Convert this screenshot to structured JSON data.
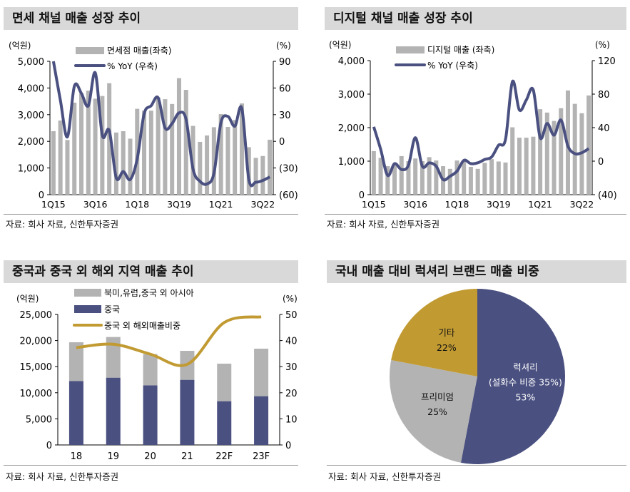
{
  "source_note": "자료: 회사 자료, 신한투자증권",
  "colors": {
    "bar_gray": "#b3b3b3",
    "navy": "#4a5080",
    "gold": "#c19a32",
    "header_bg": "#d9d9d9"
  },
  "chart_data": [
    {
      "type": "bar+line",
      "title": "면세 채널 매출 성장 추이",
      "ylabel": "(억원)",
      "y2label": "(%)",
      "ylim": [
        0,
        5000
      ],
      "y2lim": [
        -60,
        90
      ],
      "yticks": [
        "0",
        "1,000",
        "2,000",
        "3,000",
        "4,000",
        "5,000"
      ],
      "y2ticks": [
        "(60)",
        "(30)",
        "0",
        "30",
        "60",
        "90"
      ],
      "categories": [
        "1Q15",
        "2Q15",
        "3Q15",
        "4Q15",
        "1Q16",
        "2Q16",
        "3Q16",
        "4Q16",
        "1Q17",
        "2Q17",
        "3Q17",
        "4Q17",
        "1Q18",
        "2Q18",
        "3Q18",
        "4Q18",
        "1Q19",
        "2Q19",
        "3Q19",
        "4Q19",
        "1Q20",
        "2Q20",
        "3Q20",
        "4Q20",
        "1Q21",
        "2Q21",
        "3Q21",
        "4Q21",
        "1Q22",
        "2Q22",
        "3Q22",
        "4Q22"
      ],
      "xticks": [
        "1Q15",
        "3Q16",
        "1Q18",
        "3Q19",
        "1Q21",
        "3Q22"
      ],
      "series": [
        {
          "name": "면세점 매출(좌축)",
          "type": "bar",
          "axis": "left",
          "values": [
            2380,
            2780,
            2050,
            3450,
            3800,
            3900,
            3600,
            3700,
            4180,
            2330,
            2380,
            2100,
            3220,
            3150,
            3150,
            3650,
            3580,
            3400,
            4370,
            3930,
            2580,
            1980,
            2220,
            2530,
            3020,
            2540,
            2800,
            3420,
            1780,
            1380,
            1450,
            2060
          ]
        },
        {
          "name": "% YoY (우축)",
          "type": "line",
          "axis": "right",
          "values": [
            90,
            46,
            5,
            62,
            54,
            40,
            77,
            7,
            12,
            -41,
            -34,
            -43,
            -20,
            31,
            40,
            49,
            15,
            20,
            32,
            25,
            -31,
            -45,
            -48,
            -36,
            21,
            28,
            17,
            37,
            -43,
            -46,
            -44,
            -40
          ]
        }
      ]
    },
    {
      "type": "bar+line",
      "title": "디지털 채널 매출 성장 추이",
      "ylabel": "(억원)",
      "y2label": "(%)",
      "ylim": [
        0,
        4000
      ],
      "y2lim": [
        -40,
        120
      ],
      "yticks": [
        "0",
        "1,000",
        "2,000",
        "3,000",
        "4,000"
      ],
      "y2ticks": [
        "(40)",
        "0",
        "40",
        "80",
        "120"
      ],
      "categories": [
        "1Q15",
        "2Q15",
        "3Q15",
        "4Q15",
        "1Q16",
        "2Q16",
        "3Q16",
        "4Q16",
        "1Q17",
        "2Q17",
        "3Q17",
        "4Q17",
        "1Q18",
        "2Q18",
        "3Q18",
        "4Q18",
        "1Q19",
        "2Q19",
        "3Q19",
        "4Q19",
        "1Q20",
        "2Q20",
        "3Q20",
        "4Q20",
        "1Q21",
        "2Q21",
        "3Q21",
        "4Q21",
        "1Q22",
        "2Q22",
        "3Q22",
        "4Q22"
      ],
      "xticks": [
        "1Q15",
        "3Q16",
        "1Q18",
        "3Q19",
        "1Q21",
        "3Q22"
      ],
      "series": [
        {
          "name": "디지털 매출 (좌축)",
          "type": "bar",
          "axis": "left",
          "values": [
            1300,
            1100,
            850,
            900,
            1150,
            1000,
            1080,
            1000,
            1120,
            1020,
            850,
            770,
            1020,
            1000,
            830,
            770,
            950,
            1060,
            990,
            960,
            2010,
            1700,
            1700,
            1730,
            2550,
            2450,
            2200,
            2580,
            3110,
            2710,
            2430,
            2960
          ]
        },
        {
          "name": "% YoY (우축)",
          "type": "line",
          "axis": "right",
          "values": [
            41,
            14,
            -17,
            -3,
            -10,
            -5,
            28,
            -6,
            -2,
            -6,
            -22,
            -18,
            -12,
            1,
            -3,
            -2,
            2,
            5,
            19,
            26,
            95,
            61,
            73,
            85,
            28,
            45,
            31,
            49,
            18,
            9,
            10,
            15
          ]
        }
      ]
    },
    {
      "type": "stacked-bar+line",
      "title": "중국과 중국 외 해외 지역 매출 추이",
      "ylabel": "(억원)",
      "y2label": "(%)",
      "ylim": [
        0,
        25000
      ],
      "y2lim": [
        0,
        50
      ],
      "yticks": [
        "0",
        "5,000",
        "10,000",
        "15,000",
        "20,000",
        "25,000"
      ],
      "y2ticks": [
        "0",
        "10",
        "20",
        "30",
        "40",
        "50"
      ],
      "categories": [
        "18",
        "19",
        "20",
        "21",
        "22F",
        "23F"
      ],
      "series": [
        {
          "name": "북미,유럽,중국 외 아시아",
          "type": "bar",
          "values": [
            7420,
            7790,
            5970,
            5550,
            7190,
            9100
          ]
        },
        {
          "name": "중국",
          "type": "bar",
          "values": [
            12250,
            12890,
            11430,
            12480,
            8380,
            9340
          ]
        },
        {
          "name": "중국 외 해외매출비중",
          "type": "line",
          "axis": "right",
          "values": [
            37.3,
            38.6,
            34.8,
            30.9,
            46.9,
            49.1
          ]
        }
      ]
    },
    {
      "type": "pie",
      "title": "국내 매출 대비 럭셔리 브랜드 매출 비중",
      "slices": [
        {
          "label": "럭셔리",
          "sublabel": "(설화수 비중 35%)",
          "value": 53,
          "text": "53%"
        },
        {
          "label": "프리미엄",
          "value": 25,
          "text": "25%"
        },
        {
          "label": "기타",
          "value": 22,
          "text": "22%"
        }
      ]
    }
  ]
}
